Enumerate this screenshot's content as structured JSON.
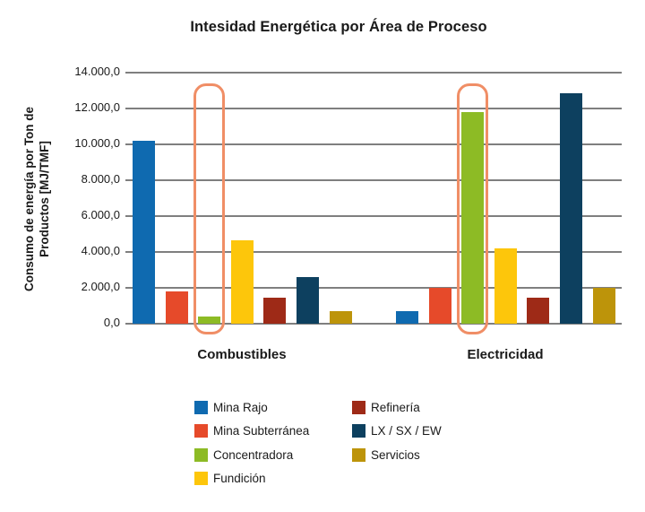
{
  "title": "Intesidad Energética por Área de Proceso",
  "colors": {
    "background": "#ffffff",
    "grid": "#7f7f7f",
    "text": "#1a1a1a",
    "annotation": "#f08e66"
  },
  "chart_data": {
    "type": "bar",
    "title": "Intesidad Energética por Área de Proceso",
    "ylabel_lines": [
      "Consumo de energía por Ton de",
      "Productos [MJ/TMF]"
    ],
    "categories": [
      "Combustibles",
      "Electricidad"
    ],
    "series": [
      {
        "name": "Mina Rajo",
        "color": "#0f6ab0",
        "values": [
          10200,
          700
        ]
      },
      {
        "name": "Mina Subterránea",
        "color": "#e64a2a",
        "values": [
          1800,
          2000
        ]
      },
      {
        "name": "Concentradora",
        "color": "#8dbb25",
        "values": [
          400,
          11800
        ]
      },
      {
        "name": "Fundición",
        "color": "#fdc60b",
        "values": [
          4650,
          4200
        ]
      },
      {
        "name": "Refinería",
        "color": "#9e2a17",
        "values": [
          1450,
          1450
        ]
      },
      {
        "name": "LX / SX / EW",
        "color": "#0d405f",
        "values": [
          2600,
          12850
        ]
      },
      {
        "name": "Servicios",
        "color": "#bd940a",
        "values": [
          700,
          2000
        ]
      }
    ],
    "ylim": [
      0,
      14000
    ],
    "ytick_step": 2000,
    "ytick_labels": [
      "0,0",
      "2.000,0",
      "4.000,0",
      "6.000,0",
      "8.000,0",
      "10.000,0",
      "12.000,0",
      "14.000,0"
    ],
    "grid": true,
    "legend_position": "bottom",
    "legend_columns": [
      [
        "Mina Rajo",
        "Mina Subterránea",
        "Concentradora",
        "Fundición"
      ],
      [
        "Refinería",
        "LX / SX / EW",
        "Servicios"
      ]
    ],
    "annotations": [
      {
        "type": "highlight-rounded-rect",
        "category": "Combustibles",
        "series": "Concentradora",
        "color": "#f08e66"
      },
      {
        "type": "highlight-rounded-rect",
        "category": "Electricidad",
        "series": "Concentradora",
        "color": "#f08e66"
      }
    ]
  }
}
